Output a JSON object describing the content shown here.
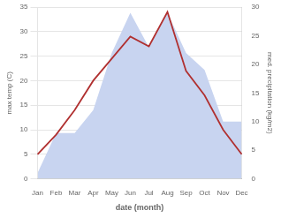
{
  "chart_data": {
    "type": "line",
    "xlabel": "date (month)",
    "ylabel": "max temp (C)",
    "y2label": "med. precipitation (kg/m2)",
    "categories": [
      "Jan",
      "Feb",
      "Mar",
      "Apr",
      "May",
      "Jun",
      "Jul",
      "Aug",
      "Sep",
      "Oct",
      "Nov",
      "Dec"
    ],
    "series": [
      {
        "type": "line",
        "color": "#b03030",
        "values": [
          5,
          9,
          14,
          20,
          24.5,
          29,
          27,
          34,
          22,
          17,
          10,
          5
        ]
      },
      {
        "type": "area",
        "axis": "y2",
        "color": "#c8d4f0",
        "values": [
          1,
          8,
          8,
          12,
          22,
          29,
          23,
          29,
          22,
          19,
          10,
          10
        ]
      }
    ],
    "ylim": [
      0,
      35
    ],
    "yticks": [
      0,
      5,
      10,
      15,
      20,
      25,
      30,
      35
    ],
    "y2lim": [
      0,
      30
    ],
    "y2ticks": [
      0,
      5,
      10,
      15,
      20,
      25,
      30
    ],
    "grid": true
  }
}
